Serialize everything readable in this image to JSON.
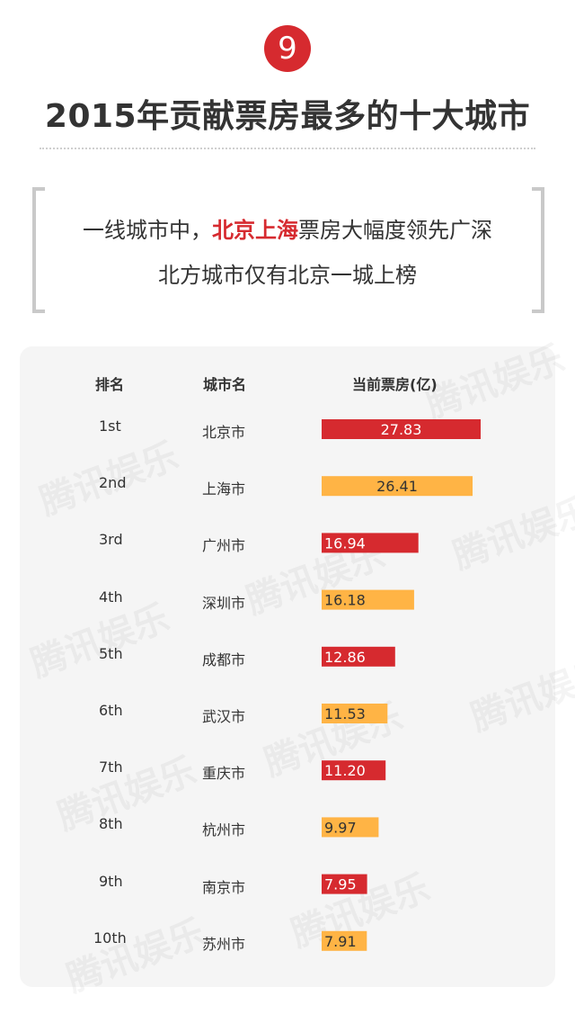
{
  "badge": "9",
  "title": "2015年贡献票房最多的十大城市",
  "subtitle": {
    "line1_pre": "一线城市中，",
    "line1_highlight": "北京上海",
    "line1_post": "票房大幅度领先广深",
    "line2": "北方城市仅有北京一城上榜"
  },
  "watermark": "腾讯娱乐",
  "colors": {
    "red": "#d62a2f",
    "orange": "#ffb445"
  },
  "chart_data": {
    "type": "bar",
    "headers": [
      "排名",
      "城市名",
      "当前票房(亿)"
    ],
    "ranks": [
      "1st",
      "2nd",
      "3rd",
      "4th",
      "5th",
      "6th",
      "7th",
      "8th",
      "9th",
      "10th"
    ],
    "categories": [
      "北京市",
      "上海市",
      "广州市",
      "深圳市",
      "成都市",
      "武汉市",
      "重庆市",
      "杭州市",
      "南京市",
      "苏州市"
    ],
    "values": [
      27.83,
      26.41,
      16.94,
      16.18,
      12.86,
      11.53,
      11.2,
      9.97,
      7.95,
      7.91
    ],
    "value_labels": [
      "27.83",
      "26.41",
      "16.94",
      "16.18",
      "12.86",
      "11.53",
      "11.20",
      "9.97",
      "7.95",
      "7.91"
    ],
    "bar_colors": [
      "#d62a2f",
      "#ffb445",
      "#d62a2f",
      "#ffb445",
      "#d62a2f",
      "#ffb445",
      "#d62a2f",
      "#ffb445",
      "#d62a2f",
      "#ffb445"
    ],
    "xlim": [
      0,
      27.83
    ]
  }
}
